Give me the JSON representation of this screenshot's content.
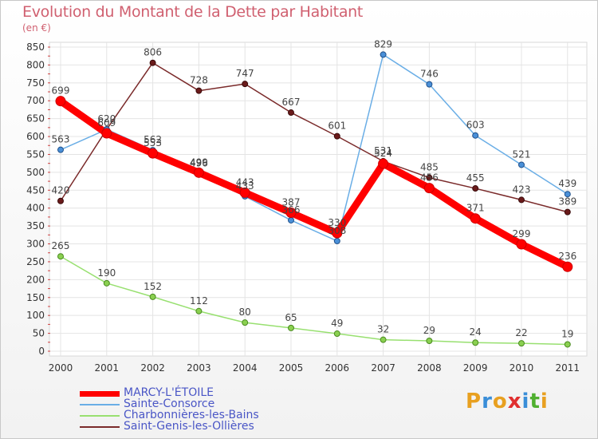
{
  "header": {
    "title": "Evolution du Montant de la Dette par Habitant",
    "unit": "(en €)"
  },
  "logo": {
    "letters": [
      "P",
      "r",
      "o",
      "x",
      "i",
      "t",
      "i"
    ],
    "colors": [
      "#e8a020",
      "#3a8ed8",
      "#e8a020",
      "#e03030",
      "#3a8ed8",
      "#50b030",
      "#e8a020"
    ]
  },
  "chart_data": {
    "type": "line",
    "title": "Evolution du Montant de la Dette par Habitant",
    "ylabel": "(en €)",
    "xlabel": "",
    "x": [
      "2000",
      "2001",
      "2002",
      "2003",
      "2004",
      "2005",
      "2006",
      "2007",
      "2008",
      "2009",
      "2010",
      "2011"
    ],
    "ylim": [
      0,
      850
    ],
    "yticks": [
      "0",
      "50",
      "100",
      "150",
      "200",
      "250",
      "300",
      "350",
      "400",
      "450",
      "500",
      "550",
      "600",
      "650",
      "700",
      "750",
      "800",
      "850"
    ],
    "grid": true,
    "legend_position": "bottom-left",
    "series": [
      {
        "name": "MARCY-L'ÉTOILE",
        "color": "#ff0000",
        "highlight": true,
        "values": [
          699,
          609,
          553,
          499,
          443,
          387,
          330,
          524,
          456,
          371,
          299,
          236
        ],
        "labels": [
          "699",
          "609",
          "553",
          "499",
          "443",
          "387",
          "330",
          "524",
          "456",
          "371",
          "299",
          "236"
        ]
      },
      {
        "name": "Sainte-Consorce",
        "color": "#6aaee6",
        "highlight": false,
        "values": [
          563,
          620,
          562,
          496,
          433,
          366,
          308,
          531,
          null,
          null,
          null,
          null
        ],
        "extra_values": [
          null,
          null,
          null,
          null,
          null,
          null,
          null,
          829,
          746,
          603,
          521,
          439
        ],
        "labels": [
          "563",
          "620",
          "562",
          "496",
          "433",
          "366",
          "308",
          "531",
          "",
          "",
          "",
          ""
        ]
      },
      {
        "name": "Charbonnières-les-Bains",
        "color": "#98e070",
        "highlight": false,
        "values": [
          265,
          190,
          152,
          112,
          80,
          65,
          49,
          32,
          29,
          24,
          22,
          19
        ],
        "labels": [
          "265",
          "190",
          "152",
          "112",
          "80",
          "65",
          "49",
          "32",
          "29",
          "24",
          "22",
          "19"
        ]
      },
      {
        "name": "Saint-Genis-les-Ollières",
        "color": "#7a2a2a",
        "highlight": false,
        "values": [
          420,
          620,
          806,
          728,
          747,
          667,
          601,
          531,
          485,
          455,
          423,
          389
        ],
        "labels": [
          "420",
          "",
          "806",
          "728",
          "747",
          "667",
          "601",
          "",
          "485",
          "455",
          "423",
          "389"
        ]
      }
    ]
  }
}
